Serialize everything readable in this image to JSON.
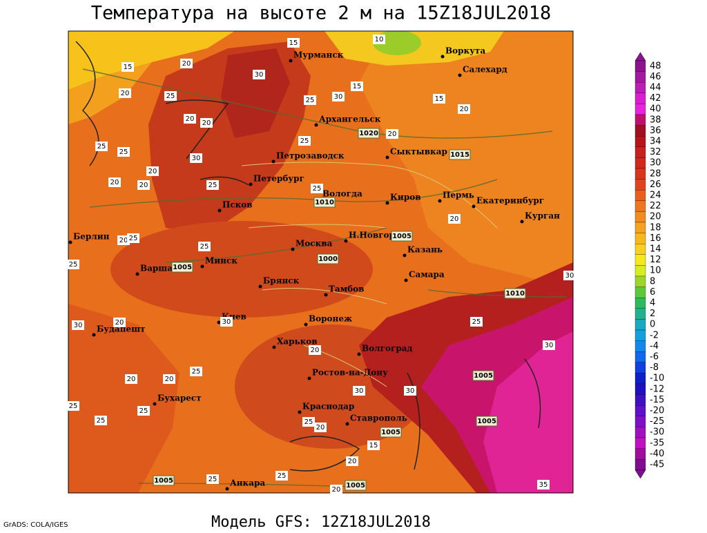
{
  "header": {
    "title": "Температура на высоте 2 м на 15Z18JUL2018"
  },
  "map": {
    "cities": [
      "Мурманск",
      "Воркута",
      "Салехард",
      "Архангельск",
      "Сыктывкар",
      "Петрозаводск",
      "Петербург",
      "Вологда",
      "Киров",
      "Пермь",
      "Екатеринбург",
      "Курган",
      "Псков",
      "Берлин",
      "Н.Новгород",
      "Москва",
      "Казань",
      "Варшава",
      "Минск",
      "Самара",
      "Брянск",
      "Тамбов",
      "Воронеж",
      "Киев",
      "Будапешт",
      "Харьков",
      "Волгоград",
      "Ростов-на-Дону",
      "Бухарест",
      "Краснодар",
      "Ставрополь",
      "Анкара"
    ],
    "contour_labels": [
      15,
      20,
      25,
      20,
      15,
      10,
      30,
      25,
      30,
      15,
      15,
      20,
      20,
      20,
      25,
      25,
      20,
      30,
      20,
      20,
      25,
      25,
      25,
      20,
      20,
      20,
      25,
      25,
      25,
      20,
      20,
      30,
      30,
      25,
      30,
      30,
      20,
      20,
      25,
      25,
      25,
      25,
      30,
      30,
      25,
      20,
      15,
      20,
      25,
      25,
      20,
      35
    ],
    "isobar_labels": [
      1020,
      1015,
      1010,
      1005,
      1000,
      1005,
      1010,
      1005,
      1005,
      1005,
      1005,
      1005
    ]
  },
  "colorbar": {
    "labels": [
      "48",
      "46",
      "44",
      "42",
      "40",
      "38",
      "36",
      "34",
      "32",
      "30",
      "28",
      "26",
      "24",
      "22",
      "20",
      "18",
      "16",
      "14",
      "12",
      "10",
      "8",
      "6",
      "4",
      "2",
      "0",
      "-2",
      "-4",
      "-6",
      "-8",
      "-10",
      "-12",
      "-15",
      "-20",
      "-25",
      "-30",
      "-35",
      "-40",
      "-45"
    ]
  },
  "footer": {
    "model": "Модель GFS: 12Z18JUL2018",
    "credit": "GrADS: COLA/IGES"
  }
}
